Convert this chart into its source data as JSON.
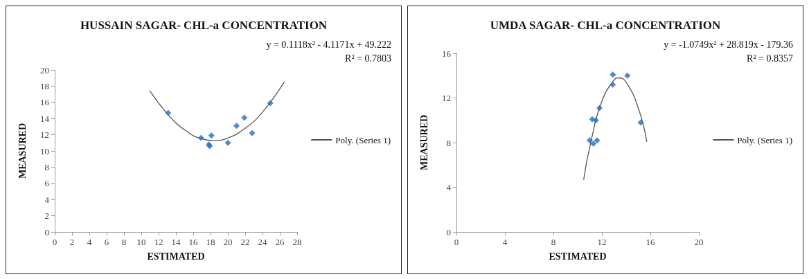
{
  "chart_data": [
    {
      "type": "scatter",
      "title": "HUSSAIN SAGAR- CHL-a CONCENTRATION",
      "xlabel": "ESTIMATED",
      "ylabel": "MEASURED",
      "xlim": [
        0,
        28
      ],
      "xticks": [
        0,
        2,
        4,
        6,
        8,
        10,
        12,
        14,
        16,
        18,
        20,
        22,
        24,
        26,
        28
      ],
      "ylim": [
        0,
        20
      ],
      "yticks": [
        0,
        2,
        4,
        6,
        8,
        10,
        12,
        14,
        16,
        18,
        20
      ],
      "marker": "diamond",
      "legend": "right",
      "annotations": [
        "y = 0.1118x² - 4.1171x + 49.222",
        "R² = 0.7803"
      ],
      "series": [
        {
          "type": "scatter",
          "color": "#1f6fbf",
          "x": [
            13.1,
            16.9,
            17.8,
            17.9,
            18.1,
            20,
            21,
            21.9,
            22.8,
            24.9
          ],
          "values": [
            14.7,
            11.6,
            10.8,
            10.6,
            11.9,
            11,
            13.1,
            14.1,
            12.2,
            15.9
          ]
        },
        {
          "type": "line",
          "name": "Poly. (Series 1)",
          "color": "#555555",
          "marker": "none",
          "x": [
            11,
            13,
            15,
            17,
            18.4,
            20,
            22,
            24,
            26.5
          ],
          "values": [
            17.4,
            14.6,
            12.6,
            11.5,
            11.3,
            11.6,
            12.8,
            14.8,
            18.5
          ]
        }
      ]
    },
    {
      "type": "scatter",
      "title": "UMDA SAGAR- CHL-a CONCENTRATION",
      "xlabel": "ESTIMATED",
      "ylabel": "MEASURED",
      "xlim": [
        0,
        20
      ],
      "xticks": [
        0,
        4,
        8,
        12,
        16,
        20
      ],
      "ylim": [
        0,
        16
      ],
      "yticks": [
        0,
        4,
        8,
        12,
        16
      ],
      "marker": "diamond",
      "legend": "right",
      "annotations": [
        "y = -1.0749x² + 28.819x - 179.36",
        "R² = 0.8357"
      ],
      "series": [
        {
          "type": "scatter",
          "color": "#1f6fbf",
          "x": [
            11,
            11.2,
            11.3,
            11.5,
            11.6,
            11.8,
            12.9,
            12.9,
            14.1,
            15.2
          ],
          "values": [
            8.2,
            10.1,
            7.9,
            10,
            8.2,
            11.1,
            14.1,
            13.2,
            14,
            9.8
          ]
        },
        {
          "type": "line",
          "name": "Poly. (Series 1)",
          "color": "#555555",
          "marker": "none",
          "x": [
            10.5,
            11,
            12,
            13,
            13.4,
            14,
            15,
            15.7
          ],
          "values": [
            4.7,
            7.6,
            11.7,
            13.6,
            13.8,
            13.4,
            11.1,
            8.1
          ]
        }
      ]
    }
  ]
}
